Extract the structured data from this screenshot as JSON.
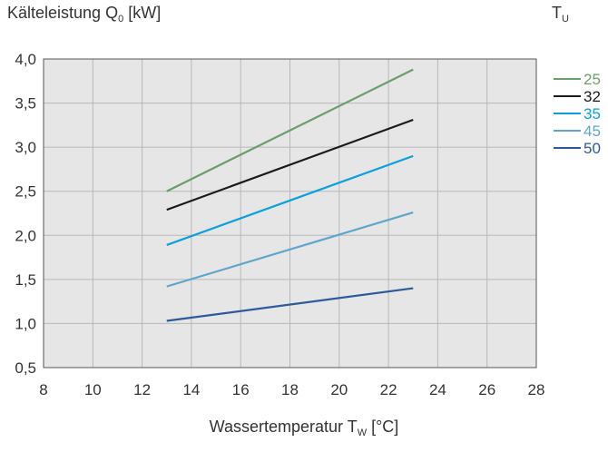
{
  "title": {
    "main": "Kälteleistung Q",
    "sub": "0",
    "unit": " [kW]"
  },
  "legend_title": {
    "main": "T",
    "sub": "U"
  },
  "xlabel": {
    "main": "Wassertemperatur T",
    "sub": "W",
    "unit": " [°C]"
  },
  "chart_data": {
    "type": "line",
    "xlim": [
      8,
      28
    ],
    "ylim": [
      0.5,
      4.0
    ],
    "x_ticks": [
      "8",
      "10",
      "12",
      "14",
      "16",
      "18",
      "20",
      "22",
      "24",
      "26",
      "28"
    ],
    "y_ticks": [
      "4,0",
      "3,5",
      "3,0",
      "2,5",
      "2,0",
      "1,5",
      "1,0",
      "0,5"
    ],
    "grid": true,
    "legend_position": "right",
    "series": [
      {
        "name": "25",
        "color": "#6a9e6a",
        "x": [
          13,
          23
        ],
        "y": [
          2.5,
          3.88
        ]
      },
      {
        "name": "32",
        "color": "#1a1a1a",
        "x": [
          13,
          23
        ],
        "y": [
          2.29,
          3.31
        ]
      },
      {
        "name": "35",
        "color": "#0aa0de",
        "x": [
          13,
          23
        ],
        "y": [
          1.89,
          2.9
        ]
      },
      {
        "name": "45",
        "color": "#5ea6cc",
        "x": [
          13,
          23
        ],
        "y": [
          1.42,
          2.26
        ]
      },
      {
        "name": "50",
        "color": "#2d5a9a",
        "x": [
          13,
          23
        ],
        "y": [
          1.03,
          1.4
        ]
      }
    ]
  }
}
